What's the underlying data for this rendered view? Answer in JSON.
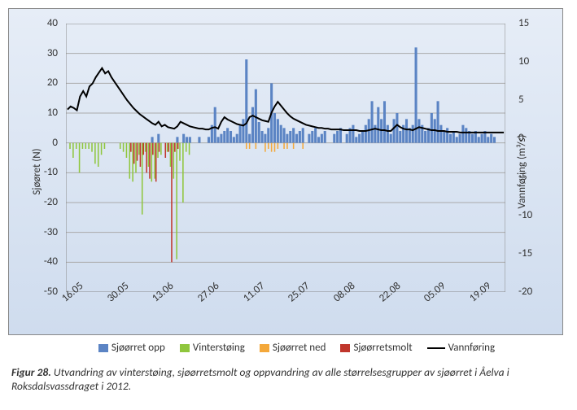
{
  "chart": {
    "type": "bar+line",
    "background_gradient": [
      "#e6edf7",
      "#cfdcee"
    ],
    "grid_color": "#aaaaaa",
    "yleft": {
      "label": "Sjøøret (N)",
      "min": -50,
      "max": 40,
      "step": 10
    },
    "yright": {
      "label": "Vannføring (m³/s)",
      "min": -20,
      "max": 15,
      "ticks": [
        -20,
        -15,
        -10,
        -5,
        0,
        5,
        10,
        15
      ]
    },
    "x": {
      "labels": [
        "16.05",
        "30.05",
        "13.06",
        "27.06",
        "11.07",
        "25.07",
        "08.08",
        "22.08",
        "05.09",
        "19.09"
      ],
      "count": 140
    },
    "series": {
      "opp": {
        "label": "Sjøørret opp",
        "color": "#5b84c4"
      },
      "vint": {
        "label": "Vinterstøing",
        "color": "#8fc63d"
      },
      "ned": {
        "label": "Sjøørret ned",
        "color": "#f4a83a"
      },
      "smolt": {
        "label": "Sjøørretsmolt",
        "color": "#c0362c"
      },
      "flow": {
        "label": "Vannføring",
        "color": "#000000"
      }
    },
    "data": {
      "opp": [
        0,
        0,
        0,
        0,
        0,
        0,
        0,
        0,
        0,
        0,
        0,
        0,
        0,
        0,
        0,
        0,
        0,
        0,
        0,
        0,
        0,
        0,
        0,
        0,
        0,
        0,
        0,
        2,
        0,
        3,
        0,
        0,
        0,
        0,
        0,
        2,
        0,
        3,
        2,
        2,
        0,
        0,
        2,
        0,
        0,
        2,
        6,
        12,
        2,
        3,
        4,
        5,
        4,
        2,
        3,
        6,
        8,
        28,
        3,
        12,
        18,
        7,
        4,
        3,
        5,
        20,
        10,
        8,
        6,
        5,
        3,
        4,
        5,
        3,
        4,
        5,
        0,
        3,
        4,
        5,
        2,
        3,
        4,
        0,
        0,
        3,
        4,
        5,
        0,
        3,
        5,
        6,
        2,
        3,
        4,
        6,
        8,
        14,
        6,
        12,
        8,
        14,
        6,
        3,
        8,
        10,
        4,
        6,
        8,
        5,
        6,
        32,
        8,
        6,
        4,
        5,
        10,
        8,
        14,
        6,
        4,
        5,
        3,
        4,
        2,
        3,
        6,
        5,
        4,
        3,
        4,
        2,
        3,
        4,
        2,
        3,
        2,
        0,
        0,
        0
      ],
      "vint": [
        0,
        -2,
        -5,
        -2,
        -10,
        -2,
        -2,
        -2,
        -3,
        -7,
        -8,
        -4,
        -2,
        0,
        0,
        0,
        0,
        -2,
        -3,
        -5,
        -12,
        -13,
        -10,
        -4,
        -24,
        -3,
        -8,
        -13,
        -12,
        -5,
        -4,
        0,
        -3,
        -8,
        -12,
        -39,
        -6,
        -20,
        -3,
        -4,
        0,
        0,
        0,
        0,
        0,
        0,
        0,
        0,
        0,
        0,
        0,
        0,
        0,
        0,
        0,
        0,
        0,
        0,
        0,
        0,
        0,
        0,
        0,
        0,
        0,
        0,
        0,
        0,
        0,
        0,
        0,
        0,
        0,
        0,
        0,
        0,
        0,
        0,
        0,
        0,
        0,
        0,
        0,
        0,
        0,
        0,
        0,
        0,
        0,
        0,
        0,
        0,
        0,
        0,
        0,
        0,
        0,
        0,
        0,
        0,
        0,
        0,
        0,
        0,
        0,
        0,
        0,
        0,
        0,
        0,
        0,
        0,
        0,
        0,
        0,
        0,
        0,
        0,
        0,
        0,
        0,
        0,
        0,
        0,
        0,
        0,
        0,
        0,
        0,
        0,
        0,
        0,
        0,
        0,
        0,
        0,
        0,
        0,
        0,
        0
      ],
      "ned": [
        0,
        0,
        0,
        0,
        0,
        0,
        0,
        0,
        0,
        0,
        0,
        0,
        0,
        0,
        0,
        0,
        0,
        0,
        0,
        0,
        0,
        0,
        0,
        0,
        0,
        0,
        0,
        0,
        0,
        0,
        0,
        0,
        0,
        0,
        0,
        0,
        0,
        0,
        0,
        0,
        0,
        0,
        0,
        0,
        0,
        0,
        0,
        0,
        0,
        0,
        0,
        0,
        0,
        0,
        0,
        0,
        0,
        -2,
        -2,
        0,
        -2,
        0,
        0,
        -3,
        -2,
        -3,
        -3,
        -2,
        0,
        -2,
        -2,
        0,
        -2,
        0,
        0,
        -2,
        0,
        0,
        0,
        0,
        0,
        0,
        0,
        0,
        0,
        0,
        0,
        0,
        0,
        0,
        0,
        0,
        0,
        0,
        0,
        0,
        0,
        0,
        0,
        0,
        0,
        0,
        0,
        0,
        0,
        0,
        0,
        0,
        0,
        0,
        0,
        0,
        0,
        0,
        0,
        0,
        0,
        0,
        0,
        0,
        0,
        0,
        0,
        0,
        0,
        0,
        0,
        0,
        0,
        0,
        0,
        0,
        0,
        0,
        0,
        0,
        0,
        0,
        0,
        0
      ],
      "smolt": [
        0,
        0,
        0,
        0,
        0,
        0,
        0,
        0,
        0,
        0,
        0,
        0,
        0,
        0,
        0,
        0,
        0,
        0,
        0,
        0,
        -3,
        -7,
        -6,
        -8,
        -4,
        -10,
        -12,
        -4,
        -13,
        -3,
        0,
        -5,
        -3,
        -40,
        -3,
        -2,
        0,
        0,
        0,
        0,
        0,
        0,
        0,
        0,
        0,
        0,
        0,
        0,
        0,
        0,
        0,
        0,
        0,
        0,
        0,
        0,
        0,
        0,
        0,
        0,
        0,
        0,
        0,
        0,
        0,
        0,
        0,
        0,
        0,
        0,
        0,
        0,
        0,
        0,
        0,
        0,
        0,
        0,
        0,
        0,
        0,
        0,
        0,
        0,
        0,
        0,
        0,
        0,
        0,
        0,
        0,
        0,
        0,
        0,
        0,
        0,
        0,
        0,
        0,
        0,
        0,
        0,
        0,
        0,
        0,
        0,
        0,
        0,
        0,
        0,
        0,
        0,
        0,
        0,
        0,
        0,
        0,
        0,
        0,
        0,
        0,
        0,
        0,
        0,
        0,
        0,
        0,
        0,
        0,
        0,
        0,
        0,
        0,
        0,
        0,
        0,
        0,
        0,
        0,
        0
      ],
      "flow": [
        3.8,
        4.2,
        4.0,
        3.7,
        5.5,
        6.2,
        5.5,
        6.8,
        7.2,
        8.0,
        8.6,
        9.2,
        8.5,
        8.8,
        8.0,
        7.4,
        6.8,
        6.2,
        5.6,
        5.0,
        4.5,
        4.0,
        3.6,
        3.2,
        2.9,
        2.6,
        2.3,
        2.0,
        1.8,
        2.2,
        1.6,
        1.8,
        1.5,
        1.4,
        1.3,
        1.6,
        2.2,
        2.0,
        1.8,
        1.6,
        1.5,
        1.4,
        1.3,
        1.3,
        1.2,
        1.2,
        1.4,
        1.5,
        1.3,
        2.2,
        2.8,
        2.5,
        2.3,
        2.1,
        1.9,
        1.8,
        1.7,
        2.0,
        2.8,
        3.0,
        2.8,
        2.6,
        2.4,
        2.3,
        2.2,
        3.4,
        4.2,
        4.8,
        4.3,
        3.8,
        3.3,
        2.9,
        2.6,
        2.4,
        2.2,
        2.0,
        1.8,
        1.7,
        1.6,
        1.5,
        1.4,
        1.4,
        1.3,
        1.3,
        1.2,
        1.2,
        1.2,
        1.2,
        1.1,
        1.1,
        1.1,
        1.1,
        1.1,
        1.0,
        1.0,
        1.0,
        1.1,
        1.2,
        1.3,
        1.2,
        1.1,
        1.1,
        1.0,
        1.0,
        1.4,
        1.8,
        1.5,
        1.3,
        1.2,
        1.2,
        1.1,
        1.3,
        1.5,
        1.4,
        1.3,
        1.2,
        1.1,
        1.1,
        1.0,
        1.0,
        1.0,
        0.9,
        0.9,
        0.9,
        0.9,
        0.8,
        0.8,
        0.8,
        0.8,
        0.8,
        0.8,
        0.8,
        0.8,
        0.8,
        0.8,
        0.8,
        0.8,
        0.8,
        0.8,
        0.8
      ]
    }
  },
  "caption": {
    "fignum": "Figur 28.",
    "text": "Utvandring av vinterstøing, sjøørretsmolt og oppvandring av alle størrelsesgrupper av sjøørret i Åelva i Roksdalsvassdraget i 2012."
  }
}
